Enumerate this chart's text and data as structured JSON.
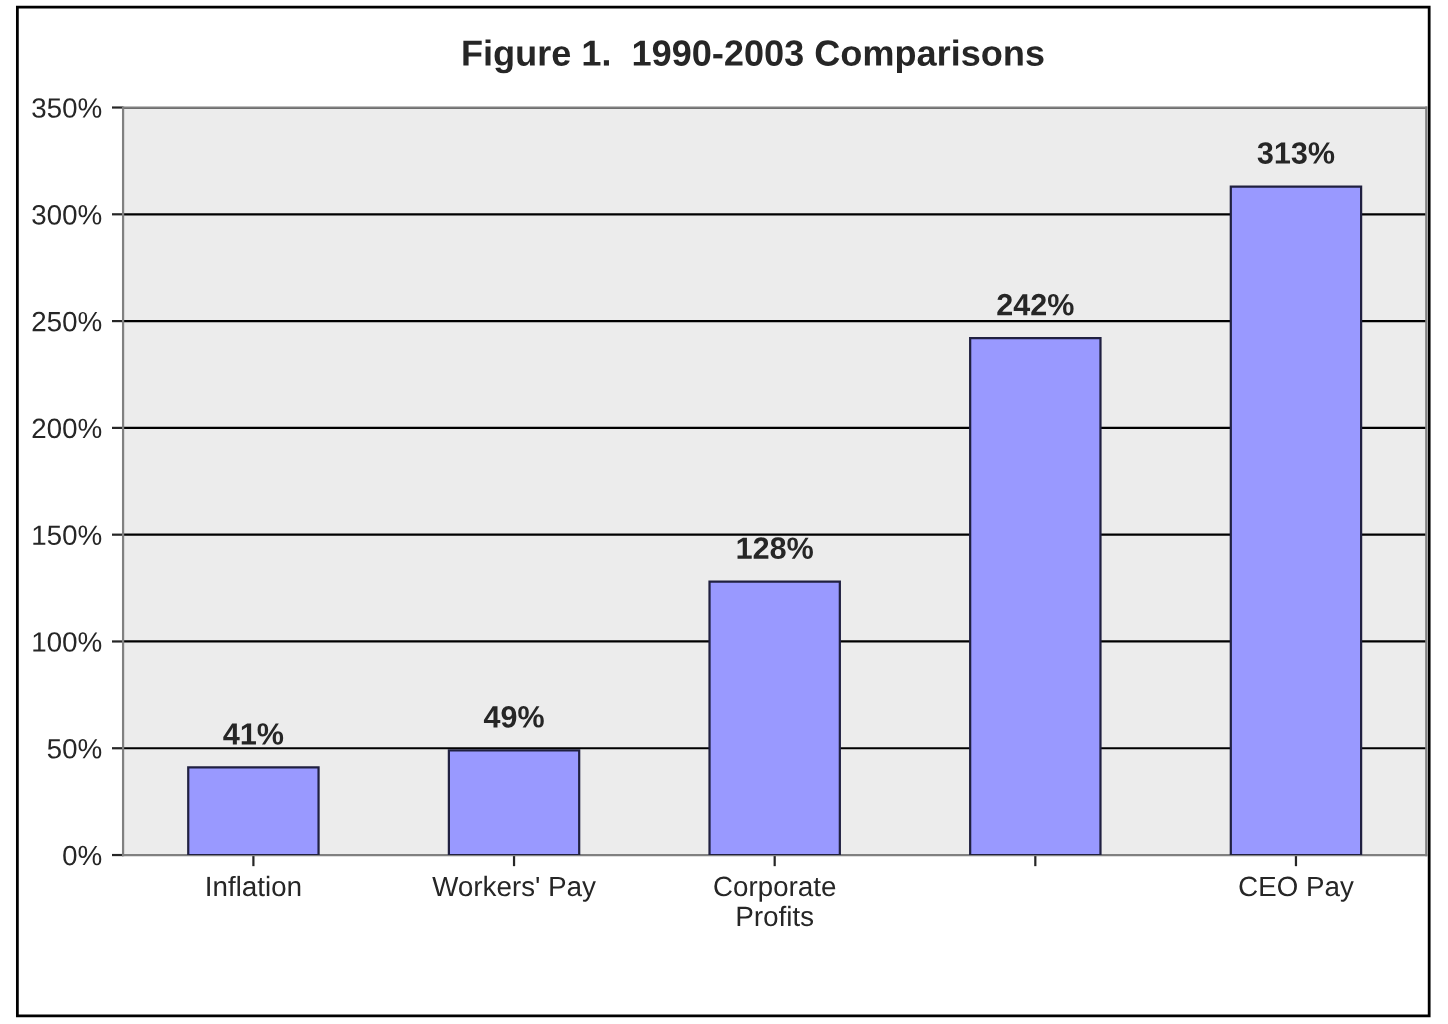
{
  "chart_data": {
    "type": "bar",
    "title": "Figure 1.  1990-2003 Comparisons",
    "categories": [
      "Inflation",
      "Workers' Pay",
      "Corporate\nProfits",
      null,
      "CEO Pay"
    ],
    "values": [
      41,
      49,
      128,
      242,
      313
    ],
    "value_labels": [
      "41%",
      "49%",
      "128%",
      "242%",
      "313%"
    ],
    "color": "#9999ff",
    "ylim": [
      0,
      350
    ],
    "yticks": [
      {
        "value": 0,
        "label": "0%"
      },
      {
        "value": 50,
        "label": "50%"
      },
      {
        "value": 100,
        "label": "100%"
      },
      {
        "value": 150,
        "label": "150%"
      },
      {
        "value": 200,
        "label": "200%"
      },
      {
        "value": 250,
        "label": "250%"
      },
      {
        "value": 300,
        "label": "300%"
      },
      {
        "value": 350,
        "label": "350%"
      }
    ],
    "grid": "y",
    "legend": false
  }
}
